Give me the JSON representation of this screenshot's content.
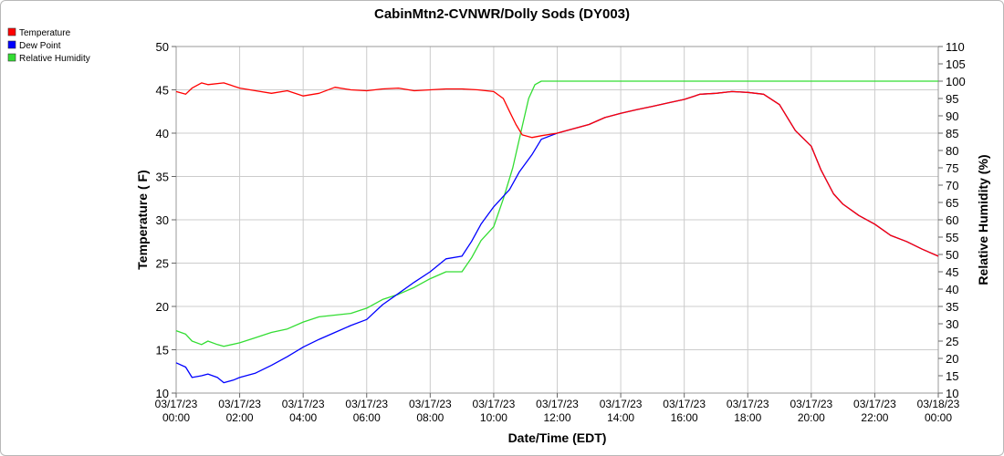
{
  "chart_data": {
    "type": "line",
    "title": "CabinMtn2-CVNWR/Dolly Sods (DY003)",
    "xlabel": "Date/Time (EDT)",
    "ylabel_left": "Temperature ( F)",
    "ylabel_right": "Relative Humidity (%)",
    "ylim_left": [
      10,
      50
    ],
    "ylim_right": [
      10,
      110
    ],
    "yticks_left": [
      "10",
      "15",
      "20",
      "25",
      "30",
      "35",
      "40",
      "45",
      "50"
    ],
    "yticks_right": [
      "10",
      "15",
      "20",
      "25",
      "30",
      "35",
      "40",
      "45",
      "50",
      "55",
      "60",
      "65",
      "70",
      "75",
      "80",
      "85",
      "90",
      "95",
      "100",
      "105",
      "110"
    ],
    "xlim_hours": [
      0,
      24
    ],
    "xticks": [
      {
        "date": "03/17/23",
        "time": "00:00"
      },
      {
        "date": "03/17/23",
        "time": "02:00"
      },
      {
        "date": "03/17/23",
        "time": "04:00"
      },
      {
        "date": "03/17/23",
        "time": "06:00"
      },
      {
        "date": "03/17/23",
        "time": "08:00"
      },
      {
        "date": "03/17/23",
        "time": "10:00"
      },
      {
        "date": "03/17/23",
        "time": "12:00"
      },
      {
        "date": "03/17/23",
        "time": "14:00"
      },
      {
        "date": "03/17/23",
        "time": "16:00"
      },
      {
        "date": "03/17/23",
        "time": "18:00"
      },
      {
        "date": "03/17/23",
        "time": "20:00"
      },
      {
        "date": "03/17/23",
        "time": "22:00"
      },
      {
        "date": "03/18/23",
        "time": "00:00"
      }
    ],
    "grid": true,
    "legend_position": "top-left outside",
    "series": [
      {
        "name": "Temperature",
        "color": "#ff0000",
        "axis": "left",
        "points": [
          [
            0,
            44.8
          ],
          [
            0.3,
            44.5
          ],
          [
            0.5,
            45.2
          ],
          [
            0.8,
            45.8
          ],
          [
            1,
            45.6
          ],
          [
            1.5,
            45.8
          ],
          [
            2,
            45.2
          ],
          [
            2.5,
            44.9
          ],
          [
            3,
            44.6
          ],
          [
            3.5,
            44.9
          ],
          [
            4,
            44.3
          ],
          [
            4.5,
            44.6
          ],
          [
            5,
            45.3
          ],
          [
            5.5,
            45.0
          ],
          [
            6,
            44.9
          ],
          [
            6.5,
            45.1
          ],
          [
            7,
            45.2
          ],
          [
            7.5,
            44.9
          ],
          [
            8,
            45.0
          ],
          [
            8.5,
            45.1
          ],
          [
            9,
            45.1
          ],
          [
            9.5,
            45.0
          ],
          [
            10,
            44.8
          ],
          [
            10.3,
            44.0
          ],
          [
            10.5,
            42.5
          ],
          [
            10.7,
            41.0
          ],
          [
            10.9,
            39.8
          ],
          [
            11.2,
            39.5
          ],
          [
            11.5,
            39.7
          ],
          [
            12,
            40.0
          ],
          [
            12.5,
            40.5
          ],
          [
            13,
            41.0
          ],
          [
            13.5,
            41.8
          ],
          [
            14,
            42.3
          ],
          [
            14.5,
            42.7
          ],
          [
            15,
            43.1
          ],
          [
            15.5,
            43.5
          ],
          [
            16,
            43.9
          ],
          [
            16.5,
            44.5
          ],
          [
            17,
            44.6
          ],
          [
            17.5,
            44.8
          ],
          [
            18,
            44.7
          ],
          [
            18.5,
            44.5
          ],
          [
            19,
            43.3
          ],
          [
            19.5,
            40.3
          ],
          [
            20,
            38.5
          ],
          [
            20.3,
            35.8
          ],
          [
            20.7,
            33.0
          ],
          [
            21,
            31.8
          ],
          [
            21.5,
            30.5
          ],
          [
            22,
            29.5
          ],
          [
            22.5,
            28.2
          ],
          [
            23,
            27.5
          ],
          [
            23.5,
            26.6
          ],
          [
            24,
            25.8
          ]
        ]
      },
      {
        "name": "Dew Point",
        "color": "#0000ff",
        "axis": "left",
        "points": [
          [
            0,
            13.5
          ],
          [
            0.3,
            13.0
          ],
          [
            0.5,
            11.8
          ],
          [
            0.8,
            12.0
          ],
          [
            1,
            12.2
          ],
          [
            1.3,
            11.8
          ],
          [
            1.5,
            11.2
          ],
          [
            1.8,
            11.5
          ],
          [
            2,
            11.8
          ],
          [
            2.5,
            12.3
          ],
          [
            3,
            13.2
          ],
          [
            3.5,
            14.2
          ],
          [
            4,
            15.3
          ],
          [
            4.5,
            16.2
          ],
          [
            5,
            17.0
          ],
          [
            5.5,
            17.8
          ],
          [
            6,
            18.5
          ],
          [
            6.5,
            20.2
          ],
          [
            7,
            21.5
          ],
          [
            7.5,
            22.8
          ],
          [
            8,
            24.0
          ],
          [
            8.5,
            25.5
          ],
          [
            9,
            25.8
          ],
          [
            9.3,
            27.5
          ],
          [
            9.6,
            29.5
          ],
          [
            10,
            31.5
          ],
          [
            10.5,
            33.5
          ],
          [
            10.8,
            35.5
          ],
          [
            11.2,
            37.5
          ],
          [
            11.5,
            39.3
          ],
          [
            12,
            40.0
          ],
          [
            12.5,
            40.5
          ],
          [
            13,
            41.0
          ],
          [
            13.5,
            41.8
          ],
          [
            14,
            42.3
          ],
          [
            14.5,
            42.7
          ],
          [
            15,
            43.1
          ],
          [
            15.5,
            43.5
          ],
          [
            16,
            43.9
          ],
          [
            16.5,
            44.5
          ],
          [
            17,
            44.6
          ],
          [
            17.5,
            44.8
          ],
          [
            18,
            44.7
          ],
          [
            18.5,
            44.5
          ],
          [
            19,
            43.3
          ],
          [
            19.5,
            40.3
          ],
          [
            20,
            38.5
          ],
          [
            20.3,
            35.8
          ],
          [
            20.7,
            33.0
          ],
          [
            21,
            31.8
          ],
          [
            21.5,
            30.5
          ],
          [
            22,
            29.5
          ],
          [
            22.5,
            28.2
          ],
          [
            23,
            27.5
          ],
          [
            23.5,
            26.6
          ],
          [
            24,
            25.8
          ]
        ]
      },
      {
        "name": "Relative Humidity",
        "color": "#33dd33",
        "axis": "right",
        "points": [
          [
            0,
            28
          ],
          [
            0.3,
            27
          ],
          [
            0.5,
            25
          ],
          [
            0.8,
            24
          ],
          [
            1,
            25
          ],
          [
            1.3,
            24
          ],
          [
            1.5,
            23.5
          ],
          [
            2,
            24.5
          ],
          [
            2.5,
            26
          ],
          [
            3,
            27.5
          ],
          [
            3.5,
            28.5
          ],
          [
            4,
            30.5
          ],
          [
            4.5,
            32
          ],
          [
            5,
            32.5
          ],
          [
            5.5,
            33
          ],
          [
            6,
            34.5
          ],
          [
            6.5,
            37
          ],
          [
            7,
            38.5
          ],
          [
            7.5,
            40.5
          ],
          [
            8,
            43
          ],
          [
            8.5,
            45
          ],
          [
            9,
            45
          ],
          [
            9.3,
            49
          ],
          [
            9.6,
            54
          ],
          [
            10,
            58
          ],
          [
            10.3,
            66
          ],
          [
            10.6,
            75
          ],
          [
            10.9,
            87
          ],
          [
            11.1,
            95
          ],
          [
            11.3,
            99
          ],
          [
            11.5,
            100
          ],
          [
            24,
            100
          ]
        ]
      }
    ]
  }
}
